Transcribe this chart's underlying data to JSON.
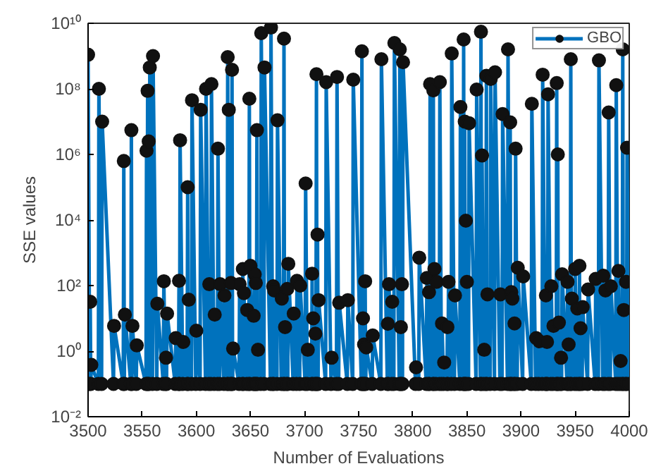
{
  "chart_data": {
    "type": "line",
    "xlabel": "Number of Evaluations",
    "ylabel": "SSE values",
    "log": "y",
    "marker": "circle",
    "line_style": "solid",
    "legend": "top right",
    "grid": false,
    "xlim": [
      3500,
      4000
    ],
    "xticks": [
      3500,
      3550,
      3600,
      3650,
      3700,
      3750,
      3800,
      3850,
      3900,
      3950,
      4000
    ],
    "ylim": [
      0.01,
      10000000000
    ],
    "yticks": [
      {
        "value": 0.01,
        "label": "10⁻²"
      },
      {
        "value": 1,
        "label": "10⁰"
      },
      {
        "value": 100,
        "label": "10²"
      },
      {
        "value": 10000,
        "label": "10⁴"
      },
      {
        "value": 1000000,
        "label": "10⁶"
      },
      {
        "value": 100000000,
        "label": "10⁸"
      },
      {
        "value": 10000000000,
        "label": "10¹⁰"
      }
    ],
    "series": [
      {
        "name": "GBO",
        "color": "#0072bd",
        "x": [
          3500,
          3501.5,
          3502,
          3502.5,
          3503,
          3509.5,
          3510,
          3512.5,
          3513,
          3523.5,
          3524,
          3532.5,
          3533,
          3533.5,
          3534,
          3539.5,
          3540,
          3540.5,
          3541,
          3544.5,
          3545,
          3553.5,
          3554,
          3554.5,
          3555,
          3555.5,
          3556,
          3556.5,
          3557,
          3559.5,
          3560,
          3563.5,
          3564,
          3569.5,
          3570,
          3571.5,
          3572,
          3572.5,
          3573,
          3580.5,
          3581,
          3583.5,
          3584,
          3584.5,
          3585,
          3587.5,
          3588,
          3591.5,
          3592,
          3592.5,
          3593,
          3595.5,
          3596,
          3599.5,
          3600,
          3603.5,
          3604,
          3608.5,
          3609,
          3611.5,
          3612,
          3613.5,
          3614,
          3616.5,
          3617,
          3619.5,
          3620,
          3621.5,
          3622,
          3625.5,
          3626,
          3628.5,
          3629,
          3629.5,
          3630,
          3631.5,
          3632,
          3632.5,
          3633,
          3633.5,
          3634,
          3639.5,
          3640,
          3642.5,
          3643,
          3643.5,
          3644,
          3646.5,
          3647,
          3648.5,
          3649,
          3649.5,
          3650,
          3652.5,
          3653,
          3653.5,
          3654,
          3654.5,
          3655,
          3655.5,
          3656,
          3656.5,
          3657,
          3659.5,
          3660,
          3662.5,
          3663,
          3668.5,
          3669,
          3670.5,
          3671,
          3671.5,
          3672,
          3674.5,
          3675,
          3678.5,
          3679,
          3680.5,
          3681,
          3681.5,
          3682,
          3683.5,
          3684,
          3684.5,
          3685,
          3689.5,
          3690,
          3692.5,
          3693,
          3695.5,
          3696,
          3700.5,
          3701,
          3702.5,
          3703,
          3706.5,
          3707,
          3707.5,
          3708,
          3709.5,
          3710,
          3710.5,
          3711,
          3711.5,
          3712,
          3712.5,
          3713,
          3719.5,
          3720,
          3724.5,
          3725,
          3729.5,
          3730,
          3731.5,
          3732,
          3739.5,
          3740,
          3744.5,
          3745,
          3752.5,
          3753,
          3753.5,
          3754,
          3754.5,
          3755,
          3755.5,
          3756,
          3756.5,
          3757,
          3762.5,
          3763,
          3770.5,
          3771,
          3776.5,
          3777,
          3777.5,
          3778,
          3780.5,
          3781,
          3782.5,
          3783,
          3787.5,
          3788,
          3788.5,
          3789,
          3789.5,
          3790,
          3790.5,
          3791,
          3802.5,
          3803,
          3805.5,
          3806,
          3812.5,
          3813,
          3814.5,
          3815,
          3815.5,
          3816,
          3818.5,
          3819,
          3819.5,
          3820,
          3821.5,
          3822,
          3824.5,
          3825,
          3826.5,
          3827,
          3828.5,
          3829,
          3831.5,
          3832,
          3832.5,
          3833,
          3835.5,
          3836,
          3838.5,
          3839,
          3843.5,
          3844,
          3846.5,
          3847,
          3847.5,
          3848,
          3848.5,
          3849,
          3849.5,
          3850,
          3851.5,
          3852,
          3858.5,
          3859,
          3862.5,
          3863,
          3863.5,
          3864,
          3865.5,
          3866,
          3867.5,
          3868,
          3868.5,
          3869,
          3871.5,
          3872,
          3875.5,
          3876,
          3880.5,
          3881,
          3882.5,
          3883,
          3887.5,
          3888,
          3889.5,
          3890,
          3890.5,
          3891,
          3891.5,
          3892,
          3893.5,
          3894,
          3894.5,
          3895,
          3896.5,
          3897,
          3901.5,
          3902,
          3909.5,
          3910,
          3913.5,
          3914,
          3916.5,
          3917,
          3919.5,
          3920,
          3922.5,
          3923,
          3923.5,
          3924,
          3924.5,
          3925,
          3927.5,
          3928,
          3929.5,
          3930,
          3932.5,
          3933,
          3933.5,
          3934,
          3934.5,
          3935,
          3936.5,
          3937,
          3937.5,
          3938,
          3942.5,
          3943,
          3943.5,
          3944,
          3945.5,
          3946,
          3946.5,
          3947,
          3949.5,
          3950,
          3951.5,
          3952,
          3953.5,
          3954,
          3954.5,
          3955,
          3956.5,
          3957,
          3961.5,
          3962,
          3968.5,
          3969,
          3971.5,
          3972,
          3975.5,
          3976,
          3977.5,
          3978,
          3980.5,
          3981,
          3982.5,
          3983,
          3987.5,
          3988,
          3989.5,
          3990,
          3991.5,
          3992,
          3993.5,
          3994,
          3994.5,
          3995,
          3996.5,
          3997,
          3997.5,
          3998,
          4000
        ],
        "values": [
          1100000000.0,
          0.1,
          32,
          0.1,
          0.38,
          0.1,
          100000000.0,
          0.1,
          10000000.0,
          0.1,
          5.9,
          0.1,
          630000.0,
          0.1,
          13,
          0.1,
          5500000.0,
          0.1,
          5.9,
          0.1,
          1.5,
          0.1,
          1300000.0,
          0.1,
          87000000.0,
          0.1,
          2500000.0,
          0.1,
          450000000.0,
          0.1,
          1000000000.0,
          0.1,
          28,
          0.1,
          135,
          0.1,
          0.63,
          0.1,
          14,
          0.1,
          2.5,
          0.1,
          140,
          0.1,
          2700000.0,
          0.1,
          1.9,
          0.1,
          100000.0,
          0.1,
          37,
          0.1,
          45000000.0,
          0.1,
          4.2,
          0.1,
          23000000.0,
          0.1,
          100000000.0,
          0.1,
          110,
          0.1,
          140000000.0,
          0.1,
          13,
          0.1,
          1500000.0,
          0.1,
          110,
          0.1,
          50,
          0.1,
          930000000.0,
          0.1,
          23000000.0,
          0.1,
          120,
          0.1,
          380000000.0,
          0.1,
          1.2,
          0.1,
          110,
          0.1,
          320,
          0.1,
          59,
          0.1,
          18,
          0.1,
          50000000.0,
          0.1,
          400,
          0.1,
          12,
          0.1,
          220,
          0.1,
          120,
          0.1,
          5500000.0,
          0.1,
          1.1,
          0.1,
          5000000000.0,
          0.1,
          450000000.0,
          0.1,
          7400000000.0,
          0.1,
          95,
          0.1,
          71,
          0.1,
          11000000.0,
          0.1,
          40,
          0.1,
          3400000000.0,
          0.1,
          5.4,
          0.1,
          79,
          0.1,
          460,
          0.1,
          14,
          0.1,
          140,
          0.1,
          100,
          0.1,
          130000.0,
          0.1,
          1.1,
          0.1,
          230,
          0.1,
          10,
          0.1,
          3.4,
          0.1,
          280000000.0,
          0.1,
          3600,
          0.1,
          36,
          0.1,
          160000000.0,
          0.1,
          0.63,
          0.1,
          230000000.0,
          0.1,
          30,
          0.1,
          36,
          0.1,
          190000000.0,
          0.1,
          1400000000.0,
          0.1,
          10,
          0.1,
          1.6,
          0.1,
          135,
          0.1,
          1.3,
          0.1,
          3,
          0.1,
          800000000.0,
          0.1,
          6.8,
          0.1,
          110,
          0.1,
          32,
          0.1,
          2500000000.0,
          0.1,
          1600000000.0,
          0.1,
          5.4,
          0.1,
          110,
          0.1,
          650000000.0,
          0.1,
          0.32,
          0.1,
          710,
          0.1,
          170,
          0.1,
          63,
          0.1,
          140000000.0,
          0.1,
          90000000.0,
          0.1,
          320,
          0.1,
          130,
          0.1,
          160000000.0,
          0.1,
          7,
          0.1,
          0.45,
          0.1,
          5.4,
          0.1,
          130,
          0.1,
          1200000000.0,
          0.1,
          50,
          0.1,
          28000000.0,
          0.1,
          3200000000.0,
          0.1,
          10000000.0,
          0.1,
          9500,
          0.1,
          130,
          0.1,
          9000000.0,
          0.1,
          95000000.0,
          0.1,
          5500000000.0,
          0.1,
          930000.0,
          0.1,
          1.1,
          0.1,
          250000000.0,
          0.1,
          54,
          0.1,
          200000000.0,
          0.1,
          320000000.0,
          0.1,
          54,
          0.1,
          17000000.0,
          0.1,
          1600000000.0,
          0.1,
          9500000.0,
          0.1,
          63,
          0.1,
          40,
          0.1,
          7,
          0.1,
          1500000.0,
          0.1,
          350,
          0.1,
          190,
          0.1,
          35000000.0,
          0.1,
          2.5,
          0.1,
          2,
          0.1,
          270000000.0,
          0.1,
          50,
          0.1,
          1.9,
          0.1,
          68000000.0,
          0.1,
          95,
          0.1,
          5.9,
          0.1,
          150000000.0,
          0.1,
          1000000.0,
          0.1,
          7.4,
          0.1,
          0.63,
          0.1,
          220,
          0.1,
          130,
          0.1,
          1.6,
          0.1,
          800000000.0,
          0.1,
          40,
          0.1,
          320,
          0.1,
          20,
          0.1,
          400,
          0.1,
          5,
          0.1,
          22,
          0.1,
          76,
          0.1,
          160,
          0.1,
          740000000.0,
          0.1,
          200,
          0.1,
          71,
          0.1,
          19000000.0,
          0.1,
          95,
          0.1,
          130000000.0,
          0.1,
          280,
          0.1,
          0.5,
          0.1,
          1600000000.0,
          0.1,
          18,
          0.1,
          130,
          0.1,
          1600000.0,
          0.1
        ]
      }
    ]
  }
}
